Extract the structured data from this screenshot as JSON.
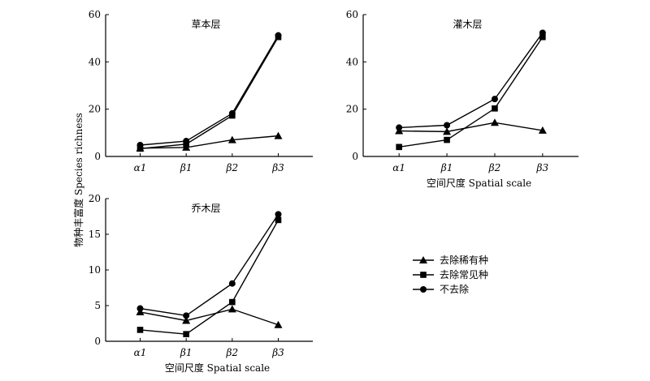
{
  "ylabel": "物种丰富度 Species richness",
  "legend": [
    {
      "label": "去除稀有种",
      "marker": "triangle"
    },
    {
      "label": "去除常见种",
      "marker": "square"
    },
    {
      "label": "不去除",
      "marker": "circle"
    }
  ],
  "chart_data": [
    {
      "type": "line",
      "title": "草本层",
      "xlabel": "",
      "categories": [
        "α1",
        "β1",
        "β2",
        "β3"
      ],
      "ylim": [
        0,
        60
      ],
      "yticks": [
        0,
        20,
        40,
        60
      ],
      "series": [
        {
          "name": "去除稀有种",
          "marker": "triangle",
          "values": [
            3.5,
            3.8,
            7,
            8.7
          ]
        },
        {
          "name": "去除常见种",
          "marker": "square",
          "values": [
            3.3,
            5.2,
            17.3,
            50.5
          ]
        },
        {
          "name": "不去除",
          "marker": "circle",
          "values": [
            4.8,
            6.5,
            18.2,
            51.2
          ]
        }
      ]
    },
    {
      "type": "line",
      "title": "灌木层",
      "xlabel": "空间尺度 Spatial scale",
      "categories": [
        "α1",
        "β1",
        "β2",
        "β3"
      ],
      "ylim": [
        0,
        60
      ],
      "yticks": [
        0,
        20,
        40,
        60
      ],
      "series": [
        {
          "name": "去除稀有种",
          "marker": "triangle",
          "values": [
            10.8,
            10.5,
            14.3,
            11
          ]
        },
        {
          "name": "去除常见种",
          "marker": "square",
          "values": [
            4,
            7,
            20.3,
            50.5
          ]
        },
        {
          "name": "不去除",
          "marker": "circle",
          "values": [
            12.2,
            13.2,
            24.3,
            52.3
          ]
        }
      ]
    },
    {
      "type": "line",
      "title": "乔木层",
      "xlabel": "空间尺度 Spatial scale",
      "categories": [
        "α1",
        "β1",
        "β2",
        "β3"
      ],
      "ylim": [
        0,
        20
      ],
      "yticks": [
        0,
        5,
        10,
        15,
        20
      ],
      "series": [
        {
          "name": "去除稀有种",
          "marker": "triangle",
          "values": [
            4.1,
            2.9,
            4.5,
            2.3
          ]
        },
        {
          "name": "去除常见种",
          "marker": "square",
          "values": [
            1.6,
            1.0,
            5.5,
            17
          ]
        },
        {
          "name": "不去除",
          "marker": "circle",
          "values": [
            4.6,
            3.6,
            8.1,
            17.8
          ]
        }
      ]
    }
  ]
}
